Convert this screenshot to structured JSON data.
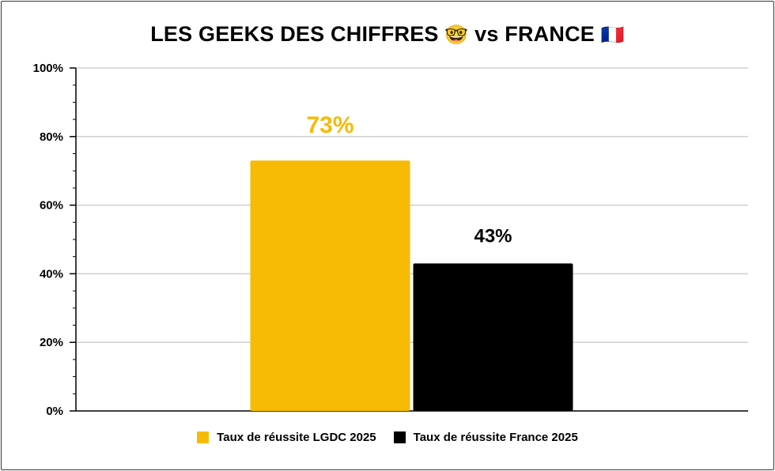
{
  "chart_data": {
    "type": "bar",
    "title_text": "LES GEEKS DES CHIFFRES",
    "title_emoji": "🤓",
    "title_vs": "vs FRANCE",
    "title_flag": "🇫🇷",
    "ylim": [
      0,
      100
    ],
    "yticks": [
      "0%",
      "20%",
      "40%",
      "60%",
      "80%",
      "100%"
    ],
    "ytick_values": [
      0,
      20,
      40,
      60,
      80,
      100
    ],
    "grid": true,
    "legend_position": "bottom",
    "series": [
      {
        "name": "Taux de réussite LGDC 2025",
        "value": 73,
        "label": "73%",
        "color": "#F7BB06"
      },
      {
        "name": "Taux de réussite France 2025",
        "value": 43,
        "label": "43%",
        "color": "#000000"
      }
    ]
  }
}
